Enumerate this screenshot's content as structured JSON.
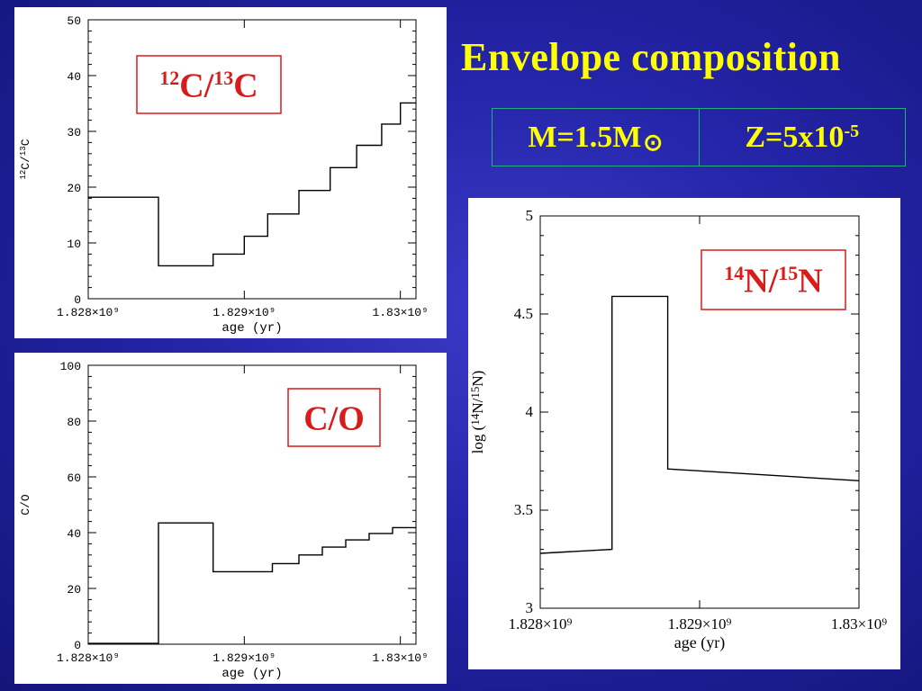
{
  "slide": {
    "title": "Envelope composition",
    "params": {
      "mass": "M=1.5M",
      "mass_symbol": "⊙",
      "metallicity_base": "Z=5x10",
      "metallicity_exp": "-5"
    }
  },
  "chart_data": [
    {
      "id": "c12c13",
      "type": "line",
      "step": true,
      "label_box": {
        "sup1": "12",
        "base1": "C/",
        "sup2": "13",
        "base2": "C"
      },
      "ylabel": "12C/13C",
      "ylabel_parts": {
        "sup1": "12",
        "base1": "C/",
        "sup2": "13",
        "base2": "C"
      },
      "xlabel": "age (yr)",
      "xlim": [
        1828000000.0,
        1830100000.0
      ],
      "ylim": [
        0,
        50
      ],
      "yticks": [
        0,
        10,
        20,
        30,
        40,
        50
      ],
      "xticks": [
        1828000000.0,
        1829000000.0,
        1830000000.0
      ],
      "xtick_labels": [
        "1.828×10⁹",
        "1.829×10⁹",
        "1.83×10⁹"
      ],
      "x": [
        1828000000.0,
        1828450000.0,
        1828450000.0,
        1828800000.0,
        1828800000.0,
        1829000000.0,
        1829000000.0,
        1829150000.0,
        1829150000.0,
        1829350000.0,
        1829350000.0,
        1829550000.0,
        1829550000.0,
        1829720000.0,
        1829720000.0,
        1829880000.0,
        1829880000.0,
        1830000000.0,
        1830000000.0,
        1830100000.0
      ],
      "y": [
        18.2,
        18.2,
        5.9,
        5.9,
        8.0,
        8.0,
        11.2,
        11.2,
        15.2,
        15.2,
        19.4,
        19.4,
        23.5,
        23.5,
        27.5,
        27.5,
        31.3,
        31.3,
        35.1,
        35.1
      ]
    },
    {
      "id": "co",
      "type": "line",
      "step": true,
      "label_box": {
        "text": "C/O"
      },
      "ylabel": "C/O",
      "xlabel": "age (yr)",
      "xlim": [
        1828000000.0,
        1830100000.0
      ],
      "ylim": [
        0,
        100
      ],
      "yticks": [
        0,
        20,
        40,
        60,
        80,
        100
      ],
      "xticks": [
        1828000000.0,
        1829000000.0,
        1830000000.0
      ],
      "xtick_labels": [
        "1.828×10⁹",
        "1.829×10⁹",
        "1.83×10⁹"
      ],
      "x": [
        1828000000.0,
        1828450000.0,
        1828450000.0,
        1828800000.0,
        1828800000.0,
        1829180000.0,
        1829180000.0,
        1829350000.0,
        1829350000.0,
        1829500000.0,
        1829500000.0,
        1829650000.0,
        1829650000.0,
        1829800000.0,
        1829800000.0,
        1829950000.0,
        1829950000.0,
        1830100000.0
      ],
      "y": [
        0.3,
        0.3,
        43.5,
        43.5,
        26.0,
        26.0,
        28.9,
        28.9,
        32.0,
        32.0,
        34.8,
        34.8,
        37.4,
        37.4,
        39.7,
        39.7,
        41.8,
        41.8
      ]
    },
    {
      "id": "n14n15",
      "type": "line",
      "step": true,
      "label_box": {
        "sup1": "14",
        "base1": "N/",
        "sup2": "15",
        "base2": "N"
      },
      "ylabel": "log (14N/15N)",
      "ylabel_parts": {
        "pre": "log (",
        "sup1": "14",
        "base1": "N/",
        "sup2": "15",
        "base2": "N)"
      },
      "xlabel": "age (yr)",
      "xlim": [
        1828000000.0,
        1830000000.0
      ],
      "ylim": [
        3,
        5
      ],
      "yticks": [
        3,
        3.5,
        4,
        4.5,
        5
      ],
      "ytick_labels": [
        "3",
        "3.5",
        "4",
        "4.5",
        "5"
      ],
      "xticks": [
        1828000000.0,
        1829000000.0,
        1830000000.0
      ],
      "xtick_labels": [
        "1.828×10⁹",
        "1.829×10⁹",
        "1.83×10⁹"
      ],
      "x": [
        1828000000.0,
        1828450000.0,
        1828450000.0,
        1828800000.0,
        1828800000.0,
        1830000000.0
      ],
      "y": [
        3.28,
        3.3,
        4.59,
        4.59,
        3.71,
        3.65
      ]
    }
  ]
}
